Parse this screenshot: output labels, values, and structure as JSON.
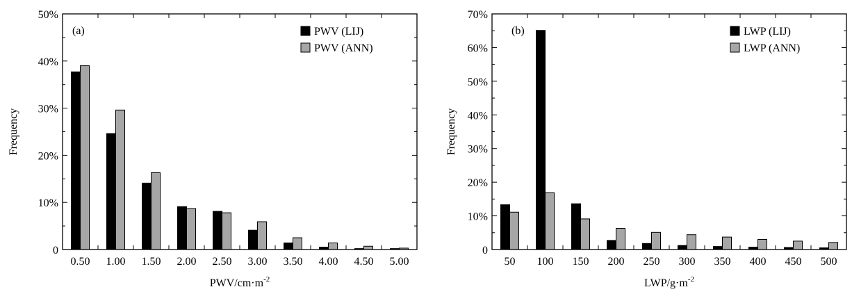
{
  "colors": {
    "lij": "#000000",
    "ann": "#a6a6a6",
    "axis": "#000000"
  },
  "chart_data": [
    {
      "type": "bar",
      "panel_label": "(a)",
      "categories": [
        "0.50",
        "1.00",
        "1.50",
        "2.00",
        "2.50",
        "3.00",
        "3.50",
        "4.00",
        "4.50",
        "5.00"
      ],
      "series": [
        {
          "name": "PWV (LIJ)",
          "color": "#000000",
          "values": [
            37.7,
            24.6,
            14.1,
            9.1,
            8.1,
            4.1,
            1.4,
            0.5,
            0.2,
            0.2
          ]
        },
        {
          "name": "PWV (ANN)",
          "color": "#a6a6a6",
          "values": [
            39.0,
            29.6,
            16.3,
            8.7,
            7.8,
            5.9,
            2.5,
            1.4,
            0.7,
            0.3
          ]
        }
      ],
      "ylim": [
        0,
        50
      ],
      "yticks": [
        0,
        10,
        20,
        30,
        40,
        50
      ],
      "ytick_labels": [
        "0",
        "10%",
        "20%",
        "30%",
        "40%",
        "50%"
      ],
      "ylabel": "Frequency",
      "xlabel": "PWV/cm·m",
      "xlabel_sup": "-2",
      "legend_position": "top-right"
    },
    {
      "type": "bar",
      "panel_label": "(b)",
      "categories": [
        "50",
        "100",
        "150",
        "200",
        "250",
        "300",
        "350",
        "400",
        "450",
        "500"
      ],
      "series": [
        {
          "name": "LWP (LIJ)",
          "color": "#000000",
          "values": [
            13.3,
            65.1,
            13.6,
            2.7,
            1.8,
            1.2,
            0.9,
            0.7,
            0.6,
            0.5
          ]
        },
        {
          "name": "LWP (ANN)",
          "color": "#a6a6a6",
          "values": [
            11.1,
            16.9,
            9.1,
            6.3,
            5.1,
            4.4,
            3.7,
            3.0,
            2.5,
            2.1
          ]
        }
      ],
      "ylim": [
        0,
        70
      ],
      "yticks": [
        0,
        10,
        20,
        30,
        40,
        50,
        60,
        70
      ],
      "ytick_labels": [
        "0",
        "10%",
        "20%",
        "30%",
        "40%",
        "50%",
        "60%",
        "70%"
      ],
      "ylabel": "Frequency",
      "xlabel": "LWP/g·m",
      "xlabel_sup": "-2",
      "legend_position": "top-right"
    }
  ]
}
